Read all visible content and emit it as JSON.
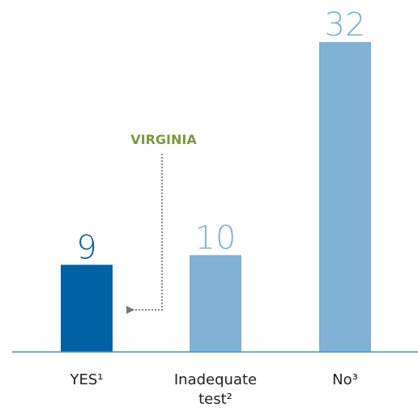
{
  "chart_data": {
    "type": "bar",
    "categories": [
      "YES¹",
      "Inadequate test²",
      "No³"
    ],
    "values": [
      9,
      10,
      32
    ],
    "colors": [
      "#0062a3",
      "#7fb2d4",
      "#7fb2d4"
    ],
    "ylim": [
      0,
      32
    ],
    "annotation": "VIRGINIA",
    "annotation_color": "#7a9a3a"
  }
}
